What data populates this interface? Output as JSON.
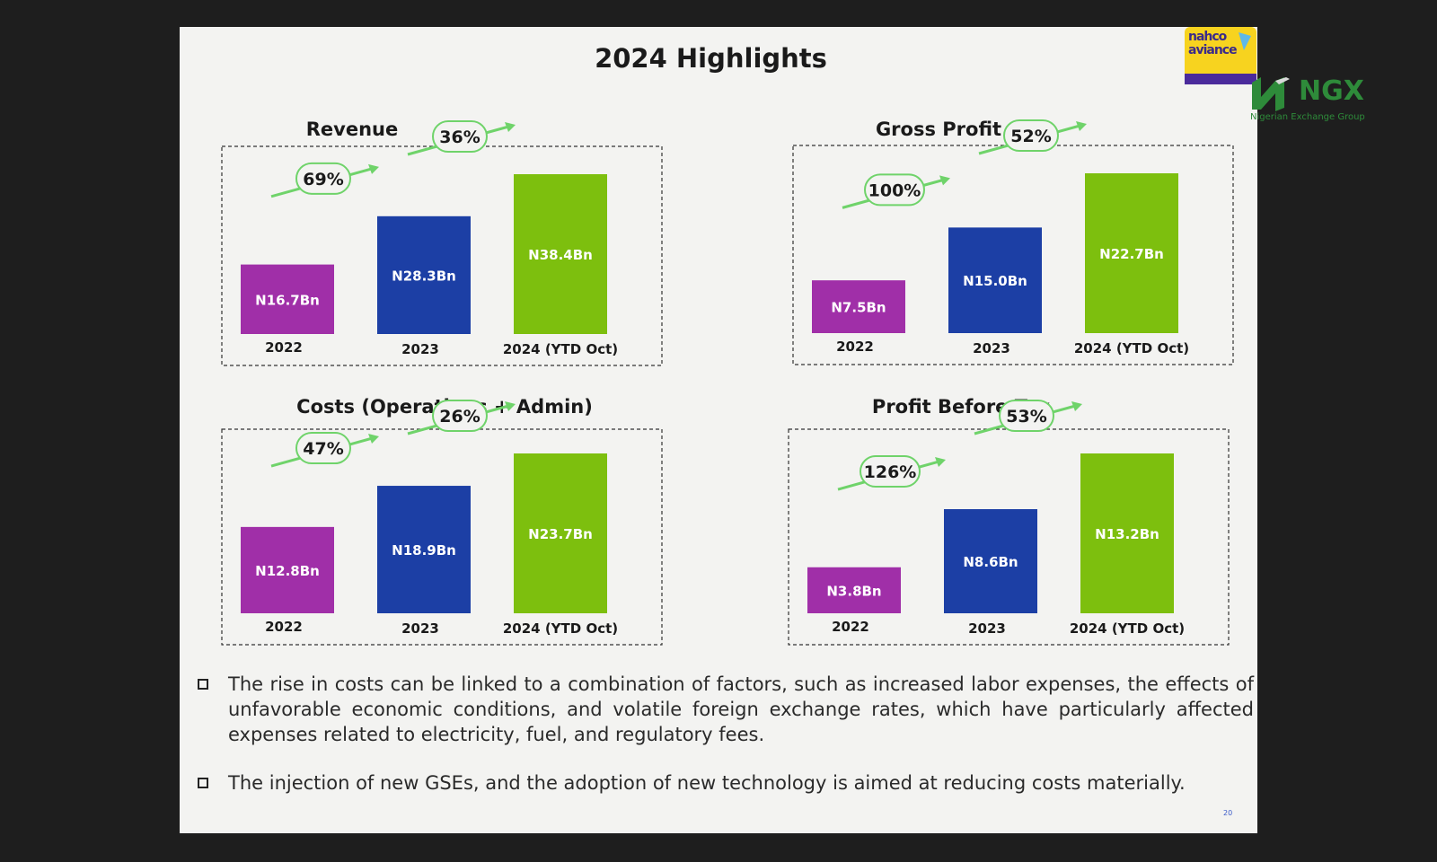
{
  "slide": {
    "title": "2024 Highlights",
    "page_number": "20"
  },
  "logos": {
    "nahco": "nahco aviance",
    "ngx": "NGX",
    "ngx_subtitle": "Nigerian Exchange Group"
  },
  "colors": {
    "2022": "#a02fa8",
    "2023": "#1c3fa5",
    "2024": "#7dbf0e",
    "growth_arrow": "#6fd36a"
  },
  "chart_data": [
    {
      "type": "bar",
      "title": "Revenue",
      "categories": [
        "2022",
        "2023",
        "2024 (YTD Oct)"
      ],
      "values": [
        16.7,
        28.3,
        38.4
      ],
      "value_labels": [
        "N16.7Bn",
        "N28.3Bn",
        "N38.4Bn"
      ],
      "growth_labels": [
        "69%",
        "36%"
      ]
    },
    {
      "type": "bar",
      "title": "Gross Profit",
      "categories": [
        "2022",
        "2023",
        "2024 (YTD Oct)"
      ],
      "values": [
        7.5,
        15.0,
        22.7
      ],
      "value_labels": [
        "N7.5Bn",
        "N15.0Bn",
        "N22.7Bn"
      ],
      "growth_labels": [
        "100%",
        "52%"
      ]
    },
    {
      "type": "bar",
      "title": "Costs (Operations + Admin)",
      "categories": [
        "2022",
        "2023",
        "2024 (YTD Oct)"
      ],
      "values": [
        12.8,
        18.9,
        23.7
      ],
      "value_labels": [
        "N12.8Bn",
        "N18.9Bn",
        "N23.7Bn"
      ],
      "growth_labels": [
        "47%",
        "26%"
      ]
    },
    {
      "type": "bar",
      "title": "Profit Before Tax",
      "categories": [
        "2022",
        "2023",
        "2024 (YTD Oct)"
      ],
      "values": [
        3.8,
        8.6,
        13.2
      ],
      "value_labels": [
        "N3.8Bn",
        "N8.6Bn",
        "N13.2Bn"
      ],
      "growth_labels": [
        "126%",
        "53%"
      ]
    }
  ],
  "bullets": [
    "The rise in costs can be linked to a combination of factors, such as increased labor expenses, the effects of unfavorable economic conditions, and volatile foreign exchange rates, which have particularly affected expenses related to electricity, fuel, and regulatory fees.",
    "The injection of new GSEs, and the adoption of new technology is aimed at reducing costs materially."
  ]
}
